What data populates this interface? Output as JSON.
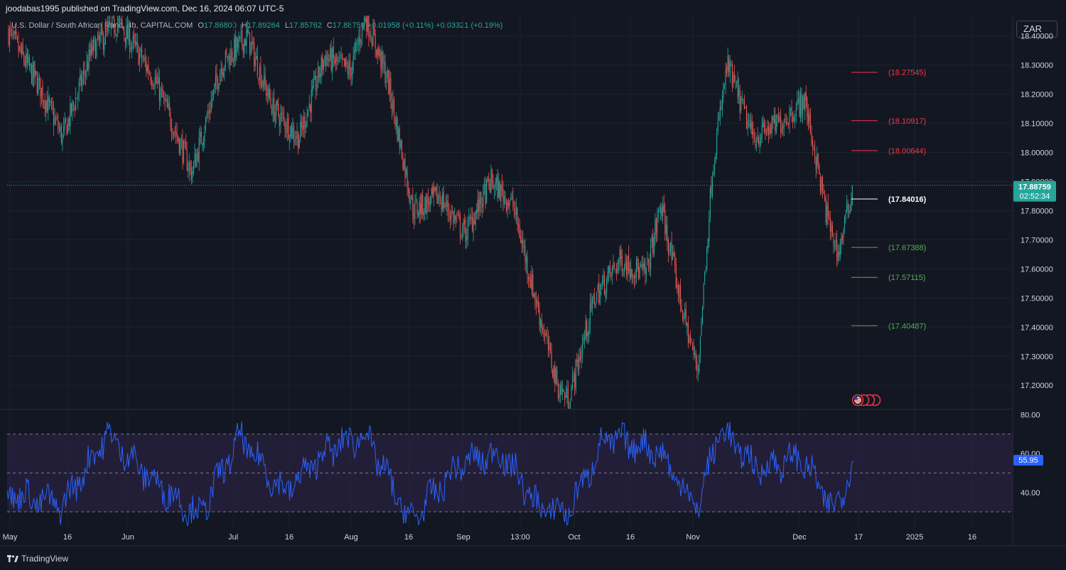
{
  "header": {
    "published_text": "joodabas1995 published on TradingView.com, Dec 16, 2024 06:07 UTC-5",
    "symbol": "U.S. Dollar / South African Rand, 4h, CAPITAL.COM",
    "ohlc": {
      "o_label": "O",
      "o_value": "17.86800",
      "h_label": "H",
      "h_value": "17.89264",
      "l_label": "L",
      "l_value": "17.85762",
      "c_label": "C",
      "c_value": "17.88759",
      "change": "+0.01958 (+0.11%)",
      "change2": "+0.03321 (+0.19%)"
    },
    "currency_button": "ZAR"
  },
  "footer": {
    "brand": "TradingView",
    "brand_icon": "tradingview-logo-icon"
  },
  "colors": {
    "background": "#131722",
    "grid": "#1e222d",
    "up": "#26a69a",
    "down": "#ef5350",
    "rsi_line": "#2962ff",
    "rsi_band": "#2a2240",
    "resistance": "#f23645",
    "support": "#4caf50",
    "price_label_bg": "#26a69a",
    "rsi_label_bg": "#2962ff"
  },
  "chart_data": [
    {
      "type": "candlestick",
      "series_name": "USDZAR 4h",
      "timeframe": "4h",
      "ylim": [
        17.12,
        18.47
      ],
      "y_ticks": [
        "18.40000",
        "18.30000",
        "18.20000",
        "18.10000",
        "18.00000",
        "17.90000",
        "17.80000",
        "17.70000",
        "17.60000",
        "17.50000",
        "17.40000",
        "17.30000",
        "17.20000"
      ],
      "x_ticks": [
        "May",
        "16",
        "Jun",
        "Jul",
        "16",
        "Aug",
        "16",
        "Sep",
        "13:00",
        "Oct",
        "16",
        "Nov",
        "Dec",
        "17",
        "2025",
        "16"
      ],
      "approx_close_path": [
        {
          "date": "May 1",
          "close": 18.42
        },
        {
          "date": "May 10",
          "close": 18.22
        },
        {
          "date": "May 16",
          "close": 18.05
        },
        {
          "date": "May 24",
          "close": 18.35
        },
        {
          "date": "May 31",
          "close": 18.45
        },
        {
          "date": "Jun 10",
          "close": 18.25
        },
        {
          "date": "Jun 20",
          "close": 17.93
        },
        {
          "date": "Jun 28",
          "close": 18.3
        },
        {
          "date": "Jul 5",
          "close": 18.4
        },
        {
          "date": "Jul 12",
          "close": 18.15
        },
        {
          "date": "Jul 19",
          "close": 18.05
        },
        {
          "date": "Jul 26",
          "close": 18.33
        },
        {
          "date": "Aug 2",
          "close": 18.28
        },
        {
          "date": "Aug 6",
          "close": 18.47
        },
        {
          "date": "Aug 12",
          "close": 18.25
        },
        {
          "date": "Aug 19",
          "close": 17.8
        },
        {
          "date": "Aug 26",
          "close": 17.85
        },
        {
          "date": "Sep 2",
          "close": 17.72
        },
        {
          "date": "Sep 9",
          "close": 17.9
        },
        {
          "date": "Sep 15",
          "close": 17.82
        },
        {
          "date": "Sep 20",
          "close": 17.55
        },
        {
          "date": "Sep 27",
          "close": 17.2
        },
        {
          "date": "Sep 30",
          "close": 17.15
        },
        {
          "date": "Oct 7",
          "close": 17.5
        },
        {
          "date": "Oct 14",
          "close": 17.63
        },
        {
          "date": "Oct 21",
          "close": 17.58
        },
        {
          "date": "Oct 25",
          "close": 17.82
        },
        {
          "date": "Oct 31",
          "close": 17.45
        },
        {
          "date": "Nov 4",
          "close": 17.25
        },
        {
          "date": "Nov 8",
          "close": 17.95
        },
        {
          "date": "Nov 12",
          "close": 18.3
        },
        {
          "date": "Nov 19",
          "close": 18.05
        },
        {
          "date": "Nov 26",
          "close": 18.1
        },
        {
          "date": "Dec 3",
          "close": 18.18
        },
        {
          "date": "Dec 9",
          "close": 17.78
        },
        {
          "date": "Dec 12",
          "close": 17.65
        },
        {
          "date": "Dec 16",
          "close": 17.88
        }
      ],
      "current_price": "17.88759",
      "countdown": "02:52:34",
      "levels": [
        {
          "label": "(18.27545)",
          "value": 18.27545,
          "kind": "resistance"
        },
        {
          "label": "(18.10917)",
          "value": 18.10917,
          "kind": "resistance"
        },
        {
          "label": "(18.00644)",
          "value": 18.00644,
          "kind": "resistance"
        },
        {
          "label": "(17.84016)",
          "value": 17.84016,
          "kind": "pivot"
        },
        {
          "label": "(17.67388)",
          "value": 17.67388,
          "kind": "support"
        },
        {
          "label": "(17.57115)",
          "value": 17.57115,
          "kind": "support"
        },
        {
          "label": "(17.40487)",
          "value": 17.40487,
          "kind": "support"
        }
      ],
      "event_markers": [
        "us-flag-icon",
        "event-icon",
        "event-icon",
        "event-icon"
      ],
      "grid": true
    },
    {
      "type": "line",
      "series_name": "RSI",
      "ylim": [
        22,
        82
      ],
      "y_ticks": [
        "80.00",
        "60.00",
        "40.00"
      ],
      "bands": {
        "upper": 70,
        "middle": 50,
        "lower": 30
      },
      "current_value": "55.95",
      "approx_path": [
        {
          "date": "May 1",
          "value": 40
        },
        {
          "date": "May 16",
          "value": 33
        },
        {
          "date": "May 28",
          "value": 70
        },
        {
          "date": "Jun 10",
          "value": 45
        },
        {
          "date": "Jun 22",
          "value": 28
        },
        {
          "date": "Jul 3",
          "value": 68
        },
        {
          "date": "Jul 15",
          "value": 40
        },
        {
          "date": "Jul 27",
          "value": 62
        },
        {
          "date": "Aug 6",
          "value": 70
        },
        {
          "date": "Aug 18",
          "value": 25
        },
        {
          "date": "Sep 1",
          "value": 55
        },
        {
          "date": "Sep 12",
          "value": 60
        },
        {
          "date": "Sep 22",
          "value": 32
        },
        {
          "date": "Sep 30",
          "value": 30
        },
        {
          "date": "Oct 10",
          "value": 68
        },
        {
          "date": "Oct 24",
          "value": 62
        },
        {
          "date": "Nov 4",
          "value": 32
        },
        {
          "date": "Nov 10",
          "value": 73
        },
        {
          "date": "Nov 20",
          "value": 52
        },
        {
          "date": "Dec 2",
          "value": 58
        },
        {
          "date": "Dec 11",
          "value": 30
        },
        {
          "date": "Dec 16",
          "value": 55.95
        }
      ]
    }
  ]
}
